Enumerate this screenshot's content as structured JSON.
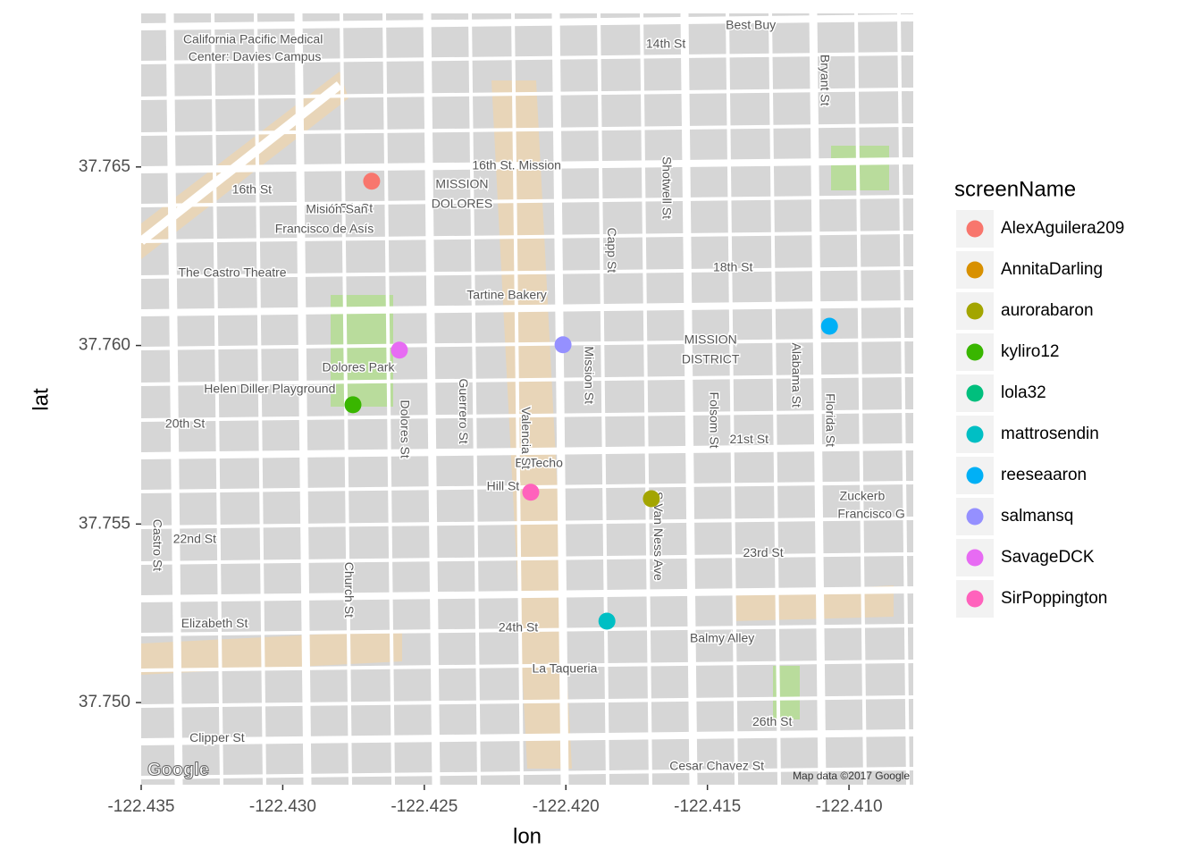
{
  "chart_data": {
    "type": "scatter",
    "xlabel": "lon",
    "ylabel": "lat",
    "legend_title": "screenName",
    "xlim": [
      -122.435,
      -122.40773
    ],
    "ylim": [
      37.7477,
      37.7693
    ],
    "xticks": [
      -122.435,
      {
        "value": -122.43,
        "label": "-122.430"
      },
      -122.425,
      {
        "value": -122.42,
        "label": "-122.420"
      },
      -122.415,
      {
        "value": -122.41,
        "label": "-122.410"
      }
    ],
    "yticks": [
      {
        "value": 37.75,
        "label": "37.750"
      },
      37.755,
      {
        "value": 37.76,
        "label": "37.760"
      },
      37.765
    ],
    "series": [
      {
        "name": "AlexAguilera209",
        "color": "#F8766D",
        "x": [
          -122.42686
        ],
        "y": [
          37.7646
        ]
      },
      {
        "name": "AnnitaDarling",
        "color": "#D89000",
        "x": [],
        "y": []
      },
      {
        "name": "aurorabaron",
        "color": "#A3A500",
        "x": [
          -122.41698
        ],
        "y": [
          37.75571
        ]
      },
      {
        "name": "kyliro12",
        "color": "#39B600",
        "x": [
          -122.42752
        ],
        "y": [
          37.75834
        ]
      },
      {
        "name": "lola32",
        "color": "#00BF7D",
        "x": [],
        "y": []
      },
      {
        "name": "mattrosendin",
        "color": "#00BFC4",
        "x": [
          -122.41855
        ],
        "y": [
          37.75228
        ]
      },
      {
        "name": "reeseaaron",
        "color": "#00B0F6",
        "x": [
          -122.41069
        ],
        "y": [
          37.76054
        ]
      },
      {
        "name": "salmansq",
        "color": "#9590FF",
        "x": [
          -122.4201
        ],
        "y": [
          37.76002
        ]
      },
      {
        "name": "SavageDCK",
        "color": "#E76BF3",
        "x": [
          -122.42588
        ],
        "y": [
          37.75987
        ]
      },
      {
        "name": "SirPoppington",
        "color": "#FF62BC",
        "x": [
          -122.42124
        ],
        "y": [
          37.75589
        ]
      }
    ],
    "map_labels": [
      {
        "text": "California Pacific Medical",
        "x": -122.43105,
        "y": 37.76856,
        "vertical": false
      },
      {
        "text": "Center: Davies Campus",
        "x": -122.43099,
        "y": 37.76806,
        "vertical": false
      },
      {
        "text": "Best Buy",
        "x": -122.41347,
        "y": 37.76896,
        "vertical": false
      },
      {
        "text": "14th St",
        "x": -122.41647,
        "y": 37.76843,
        "vertical": false
      },
      {
        "text": "15th St",
        "x": -122.42752,
        "y": 37.76382,
        "vertical": false
      },
      {
        "text": "16th St",
        "x": -122.43109,
        "y": 37.76435,
        "vertical": false
      },
      {
        "text": "MISSION",
        "x": -122.42367,
        "y": 37.7645,
        "vertical": false
      },
      {
        "text": "DOLORES",
        "x": -122.42367,
        "y": 37.76395,
        "vertical": false
      },
      {
        "text": "Misión San",
        "x": -122.42809,
        "y": 37.7638,
        "vertical": false
      },
      {
        "text": "Francisco de Asís",
        "x": -122.42853,
        "y": 37.76325,
        "vertical": false
      },
      {
        "text": "The Castro Theatre",
        "x": -122.43178,
        "y": 37.76202,
        "vertical": false
      },
      {
        "text": "Tartine Bakery",
        "x": -122.42209,
        "y": 37.76139,
        "vertical": false
      },
      {
        "text": "16th St. Mission",
        "x": -122.42174,
        "y": 37.76503,
        "vertical": false
      },
      {
        "text": "MISSION",
        "x": -122.41489,
        "y": 37.76014,
        "vertical": false
      },
      {
        "text": "DISTRICT",
        "x": -122.41489,
        "y": 37.75959,
        "vertical": false
      },
      {
        "text": "Dolores Park",
        "x": -122.42733,
        "y": 37.75937,
        "vertical": false
      },
      {
        "text": "Helen Diller Playground",
        "x": -122.43046,
        "y": 37.75877,
        "vertical": false
      },
      {
        "text": "El Techo",
        "x": -122.42095,
        "y": 37.75669,
        "vertical": false
      },
      {
        "text": "La Taqueria",
        "x": -122.42004,
        "y": 37.75093,
        "vertical": false
      },
      {
        "text": "Balmy Alley",
        "x": -122.41448,
        "y": 37.75178,
        "vertical": false
      },
      {
        "text": "24th St",
        "x": -122.42168,
        "y": 37.75208,
        "vertical": false
      },
      {
        "text": "Cesar Chavez St",
        "x": -122.41467,
        "y": 37.7482,
        "vertical": false
      },
      {
        "text": "Hill St",
        "x": -122.42222,
        "y": 37.75604,
        "vertical": false
      },
      {
        "text": "20th St",
        "x": -122.43345,
        "y": 37.75779,
        "vertical": false
      },
      {
        "text": "18th St",
        "x": -122.4141,
        "y": 37.76217,
        "vertical": false
      },
      {
        "text": "21st St",
        "x": -122.41353,
        "y": 37.75736,
        "vertical": false
      },
      {
        "text": "23rd St",
        "x": -122.41303,
        "y": 37.75418,
        "vertical": false
      },
      {
        "text": "26th St",
        "x": -122.41271,
        "y": 37.74945,
        "vertical": false
      },
      {
        "text": "22nd St",
        "x": -122.43311,
        "y": 37.75456,
        "vertical": false
      },
      {
        "text": "Elizabeth St",
        "x": -122.43241,
        "y": 37.7522,
        "vertical": false
      },
      {
        "text": "Clipper St",
        "x": -122.43232,
        "y": 37.749,
        "vertical": false
      },
      {
        "text": "Zuckerb",
        "x": -122.40953,
        "y": 37.75576,
        "vertical": false
      },
      {
        "text": "Francisco G",
        "x": -122.40921,
        "y": 37.75526,
        "vertical": false
      },
      {
        "text": "Mission St",
        "x": -122.41922,
        "y": 37.75917,
        "vertical": true
      },
      {
        "text": "Valencia St",
        "x": -122.42143,
        "y": 37.75741,
        "vertical": true
      },
      {
        "text": "Dolores St",
        "x": -122.42572,
        "y": 37.75766,
        "vertical": true
      },
      {
        "text": "Guerrero St",
        "x": -122.42364,
        "y": 37.75816,
        "vertical": true
      },
      {
        "text": "Folsom St",
        "x": -122.4148,
        "y": 37.75791,
        "vertical": true
      },
      {
        "text": "S Van Ness Ave",
        "x": -122.41676,
        "y": 37.75466,
        "vertical": true
      },
      {
        "text": "Church St",
        "x": -122.42768,
        "y": 37.75316,
        "vertical": true
      },
      {
        "text": "Alabama St",
        "x": -122.41189,
        "y": 37.75917,
        "vertical": true
      },
      {
        "text": "Florida St",
        "x": -122.41069,
        "y": 37.75791,
        "vertical": true
      },
      {
        "text": "Bryant St",
        "x": -122.41088,
        "y": 37.76743,
        "vertical": true
      },
      {
        "text": "Castro St",
        "x": -122.43446,
        "y": 37.75441,
        "vertical": true
      },
      {
        "text": "Capp St",
        "x": -122.4184,
        "y": 37.76267,
        "vertical": true
      },
      {
        "text": "Shotwell St",
        "x": -122.41647,
        "y": 37.76442,
        "vertical": true
      }
    ],
    "map_attribution": "Map data ©2017 Google",
    "map_logo": "Google"
  }
}
